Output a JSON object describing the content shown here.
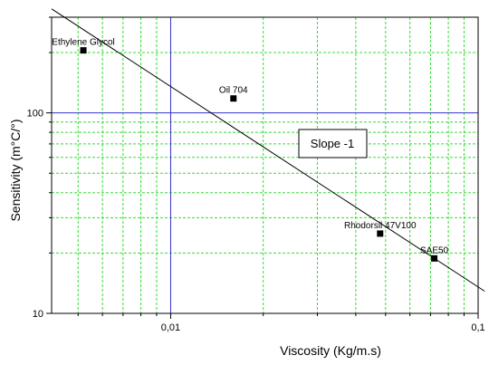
{
  "chart_data": {
    "type": "scatter",
    "xlabel": "Viscosity (Kg/m.s)",
    "ylabel": "Sensitivity (m°C/°)",
    "x_scale": "log",
    "y_scale": "log",
    "xlim": [
      0.0041,
      0.1
    ],
    "ylim": [
      10,
      300
    ],
    "x_ticks": [
      {
        "value": 0.01,
        "label": "0,01"
      },
      {
        "value": 0.1,
        "label": "0,1"
      }
    ],
    "y_ticks": [
      {
        "value": 10,
        "label": "10"
      },
      {
        "value": 100,
        "label": "100"
      }
    ],
    "grid": true,
    "grid_color": "#33dd33",
    "major_line_color": "#3333cc",
    "points": [
      {
        "label": "Ethylene Glycol",
        "x": 0.0052,
        "y": 205
      },
      {
        "label": "Oil 704",
        "x": 0.016,
        "y": 118
      },
      {
        "label": "Rhodorsil 47V100",
        "x": 0.048,
        "y": 25
      },
      {
        "label": "SAE50",
        "x": 0.072,
        "y": 18.8
      }
    ],
    "fit_line": {
      "slope": -1,
      "x": [
        0.0041,
        0.105
      ],
      "y": [
        330,
        12.9
      ]
    },
    "annotation": "Slope -1"
  }
}
